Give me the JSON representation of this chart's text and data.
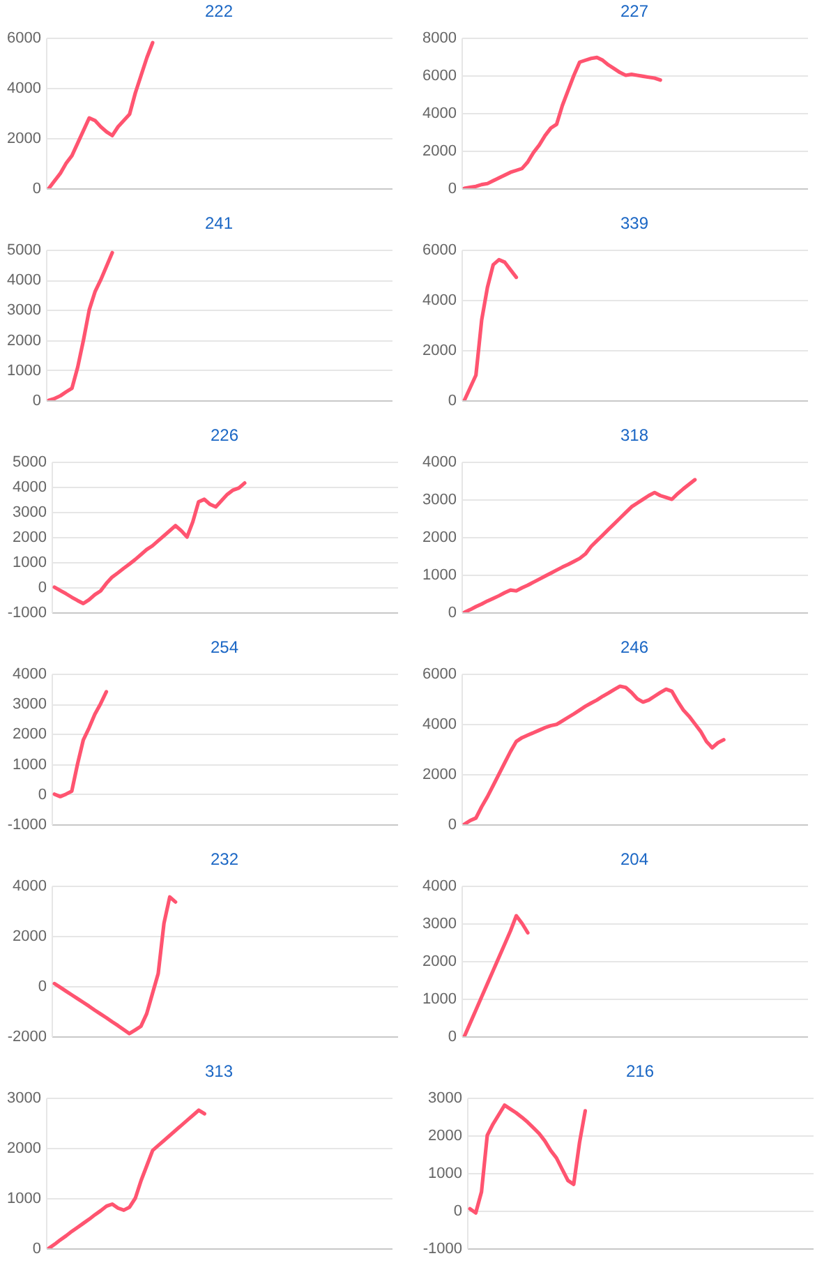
{
  "chart_data": [
    {
      "type": "line",
      "title": "222",
      "categories": [
        null,
        null,
        null,
        null,
        null,
        null,
        null,
        null,
        null,
        null,
        null,
        null,
        null,
        null,
        null,
        null,
        null,
        null,
        null,
        null,
        null,
        null,
        null,
        null,
        null,
        null,
        null,
        null,
        null,
        null,
        null,
        null,
        null,
        null,
        null,
        null,
        null,
        null,
        null,
        null,
        null,
        null,
        null,
        null,
        null,
        null,
        null,
        null,
        null,
        null,
        null,
        null,
        null,
        null,
        null,
        null,
        null,
        null,
        null,
        null
      ],
      "color": "#ff5470",
      "values": [
        0,
        300,
        600,
        1000,
        1300,
        1800,
        2300,
        2800,
        2700,
        2450,
        2250,
        2100,
        2450,
        2700,
        2950,
        3800,
        4500,
        5200,
        5800,
        null,
        null,
        null,
        null,
        null,
        null,
        null,
        null,
        null,
        null,
        null,
        null,
        null,
        null,
        null,
        null,
        null,
        null,
        null,
        null,
        null,
        null,
        null,
        null,
        null,
        null,
        null,
        null,
        null,
        null,
        null,
        null,
        null,
        null,
        null,
        null,
        null,
        null,
        null,
        null,
        null
      ],
      "ylim": [
        0,
        6000
      ],
      "yticks": [
        0,
        2000,
        4000,
        6000
      ],
      "grid": "y",
      "tick_labels": "y"
    },
    {
      "type": "line",
      "title": "227",
      "categories": [
        null,
        null,
        null,
        null,
        null,
        null,
        null,
        null,
        null,
        null,
        null,
        null,
        null,
        null,
        null,
        null,
        null,
        null,
        null,
        null,
        null,
        null,
        null,
        null,
        null,
        null,
        null,
        null,
        null,
        null,
        null,
        null,
        null,
        null,
        null,
        null,
        null,
        null,
        null,
        null,
        null,
        null,
        null,
        null,
        null,
        null,
        null,
        null,
        null,
        null,
        null,
        null,
        null,
        null,
        null,
        null,
        null,
        null,
        null,
        null
      ],
      "color": "#ff5470",
      "values": [
        0,
        50,
        100,
        200,
        250,
        400,
        550,
        700,
        850,
        950,
        1050,
        1400,
        1900,
        2300,
        2800,
        3200,
        3400,
        4400,
        5200,
        6000,
        6700,
        6800,
        6900,
        6950,
        6800,
        6550,
        6350,
        6150,
        6000,
        6050,
        6000,
        5950,
        5900,
        5850,
        5750,
        null,
        null,
        null,
        null,
        null,
        null,
        null,
        null,
        null,
        null,
        null,
        null,
        null,
        null,
        null,
        null,
        null,
        null,
        null,
        null,
        null,
        null,
        null,
        null,
        null
      ],
      "ylim": [
        0,
        8000
      ],
      "yticks": [
        0,
        2000,
        4000,
        6000,
        8000
      ],
      "grid": "y",
      "tick_labels": "y"
    },
    {
      "type": "line",
      "title": "241",
      "categories": [
        null,
        null,
        null,
        null,
        null,
        null,
        null,
        null,
        null,
        null,
        null,
        null,
        null,
        null,
        null,
        null,
        null,
        null,
        null,
        null,
        null,
        null,
        null,
        null,
        null,
        null,
        null,
        null,
        null,
        null,
        null,
        null,
        null,
        null,
        null,
        null,
        null,
        null,
        null,
        null,
        null,
        null,
        null,
        null,
        null,
        null,
        null,
        null,
        null,
        null,
        null,
        null,
        null,
        null,
        null,
        null,
        null,
        null,
        null,
        null
      ],
      "color": "#ff5470",
      "values": [
        0,
        60,
        150,
        280,
        400,
        1100,
        2000,
        3000,
        3600,
        4000,
        4450,
        4900,
        null,
        null,
        null,
        null,
        null,
        null,
        null,
        null,
        null,
        null,
        null,
        null,
        null,
        null,
        null,
        null,
        null,
        null,
        null,
        null,
        null,
        null,
        null,
        null,
        null,
        null,
        null,
        null,
        null,
        null,
        null,
        null,
        null,
        null,
        null,
        null,
        null,
        null,
        null,
        null,
        null,
        null,
        null,
        null,
        null,
        null,
        null,
        null
      ],
      "ylim": [
        0,
        5000
      ],
      "yticks": [
        0,
        1000,
        2000,
        3000,
        4000,
        5000
      ],
      "grid": "y",
      "tick_labels": "y"
    },
    {
      "type": "line",
      "title": "339",
      "categories": [
        null,
        null,
        null,
        null,
        null,
        null,
        null,
        null,
        null,
        null,
        null,
        null,
        null,
        null,
        null,
        null,
        null,
        null,
        null,
        null,
        null,
        null,
        null,
        null,
        null,
        null,
        null,
        null,
        null,
        null,
        null,
        null,
        null,
        null,
        null,
        null,
        null,
        null,
        null,
        null,
        null,
        null,
        null,
        null,
        null,
        null,
        null,
        null,
        null,
        null,
        null,
        null,
        null,
        null,
        null,
        null,
        null,
        null,
        null,
        null
      ],
      "color": "#ff5470",
      "values": [
        0,
        500,
        1000,
        3200,
        4500,
        5400,
        5600,
        5500,
        5200,
        4900,
        null,
        null,
        null,
        null,
        null,
        null,
        null,
        null,
        null,
        null,
        null,
        null,
        null,
        null,
        null,
        null,
        null,
        null,
        null,
        null,
        null,
        null,
        null,
        null,
        null,
        null,
        null,
        null,
        null,
        null,
        null,
        null,
        null,
        null,
        null,
        null,
        null,
        null,
        null,
        null,
        null,
        null,
        null,
        null,
        null,
        null,
        null,
        null,
        null,
        null
      ],
      "ylim": [
        0,
        6000
      ],
      "yticks": [
        0,
        2000,
        4000,
        6000
      ],
      "grid": "y",
      "tick_labels": "y"
    },
    {
      "type": "line",
      "title": "226",
      "categories": [
        null,
        null,
        null,
        null,
        null,
        null,
        null,
        null,
        null,
        null,
        null,
        null,
        null,
        null,
        null,
        null,
        null,
        null,
        null,
        null,
        null,
        null,
        null,
        null,
        null,
        null,
        null,
        null,
        null,
        null,
        null,
        null,
        null,
        null,
        null,
        null,
        null,
        null,
        null,
        null,
        null,
        null,
        null,
        null,
        null,
        null,
        null,
        null,
        null,
        null,
        null,
        null,
        null,
        null,
        null,
        null,
        null,
        null,
        null,
        null
      ],
      "color": "#ff5470",
      "values": [
        0,
        -130,
        -260,
        -400,
        -530,
        -650,
        -500,
        -300,
        -150,
        150,
        400,
        570,
        750,
        920,
        1100,
        1300,
        1500,
        1650,
        1850,
        2050,
        2250,
        2450,
        2250,
        2000,
        2600,
        3400,
        3500,
        3300,
        3200,
        3450,
        3700,
        3870,
        3950,
        4150,
        null,
        null,
        null,
        null,
        null,
        null,
        null,
        null,
        null,
        null,
        null,
        null,
        null,
        null,
        null,
        null,
        null,
        null,
        null,
        null,
        null,
        null,
        null,
        null,
        null,
        null
      ],
      "ylim": [
        -1000,
        5000
      ],
      "yticks": [
        -1000,
        0,
        1000,
        2000,
        3000,
        4000,
        5000
      ],
      "grid": "y",
      "tick_labels": "y"
    },
    {
      "type": "line",
      "title": "318",
      "categories": [
        null,
        null,
        null,
        null,
        null,
        null,
        null,
        null,
        null,
        null,
        null,
        null,
        null,
        null,
        null,
        null,
        null,
        null,
        null,
        null,
        null,
        null,
        null,
        null,
        null,
        null,
        null,
        null,
        null,
        null,
        null,
        null,
        null,
        null,
        null,
        null,
        null,
        null,
        null,
        null,
        null,
        null,
        null,
        null,
        null,
        null,
        null,
        null,
        null,
        null,
        null,
        null,
        null,
        null,
        null,
        null,
        null,
        null,
        null,
        null
      ],
      "color": "#ff5470",
      "values": [
        0,
        70,
        150,
        220,
        300,
        370,
        440,
        520,
        590,
        570,
        650,
        720,
        800,
        880,
        960,
        1040,
        1120,
        1200,
        1270,
        1350,
        1430,
        1550,
        1750,
        1900,
        2050,
        2200,
        2350,
        2500,
        2650,
        2800,
        2900,
        3000,
        3100,
        3180,
        3100,
        3050,
        3000,
        3150,
        3280,
        3400,
        3520,
        null,
        null,
        null,
        null,
        null,
        null,
        null,
        null,
        null,
        null,
        null,
        null,
        null,
        null,
        null,
        null,
        null,
        null,
        null
      ],
      "ylim": [
        0,
        4000
      ],
      "yticks": [
        0,
        1000,
        2000,
        3000,
        4000
      ],
      "grid": "y",
      "tick_labels": "y"
    },
    {
      "type": "line",
      "title": "254",
      "categories": [
        null,
        null,
        null,
        null,
        null,
        null,
        null,
        null,
        null,
        null,
        null,
        null,
        null,
        null,
        null,
        null,
        null,
        null,
        null,
        null,
        null,
        null,
        null,
        null,
        null,
        null,
        null,
        null,
        null,
        null,
        null,
        null,
        null,
        null,
        null,
        null,
        null,
        null,
        null,
        null,
        null,
        null,
        null,
        null,
        null,
        null,
        null,
        null,
        null,
        null,
        null,
        null,
        null,
        null,
        null,
        null,
        null,
        null,
        null,
        null
      ],
      "color": "#ff5470",
      "values": [
        0,
        -80,
        0,
        100,
        1000,
        1800,
        2200,
        2650,
        3000,
        3400,
        null,
        null,
        null,
        null,
        null,
        null,
        null,
        null,
        null,
        null,
        null,
        null,
        null,
        null,
        null,
        null,
        null,
        null,
        null,
        null,
        null,
        null,
        null,
        null,
        null,
        null,
        null,
        null,
        null,
        null,
        null,
        null,
        null,
        null,
        null,
        null,
        null,
        null,
        null,
        null,
        null,
        null,
        null,
        null,
        null,
        null,
        null,
        null,
        null,
        null
      ],
      "ylim": [
        -1000,
        4000
      ],
      "yticks": [
        -1000,
        0,
        1000,
        2000,
        3000,
        4000
      ],
      "grid": "y",
      "tick_labels": "y"
    },
    {
      "type": "line",
      "title": "246",
      "categories": [
        null,
        null,
        null,
        null,
        null,
        null,
        null,
        null,
        null,
        null,
        null,
        null,
        null,
        null,
        null,
        null,
        null,
        null,
        null,
        null,
        null,
        null,
        null,
        null,
        null,
        null,
        null,
        null,
        null,
        null,
        null,
        null,
        null,
        null,
        null,
        null,
        null,
        null,
        null,
        null,
        null,
        null,
        null,
        null,
        null,
        null,
        null,
        null,
        null,
        null,
        null,
        null,
        null,
        null,
        null,
        null,
        null,
        null,
        null,
        null
      ],
      "color": "#ff5470",
      "values": [
        0,
        150,
        250,
        700,
        1100,
        1550,
        2000,
        2450,
        2900,
        3300,
        3450,
        3550,
        3650,
        3750,
        3850,
        3930,
        3980,
        4120,
        4260,
        4400,
        4550,
        4700,
        4830,
        4950,
        5100,
        5230,
        5370,
        5500,
        5450,
        5250,
        5000,
        4870,
        4950,
        5100,
        5250,
        5380,
        5300,
        4900,
        4550,
        4300,
        4000,
        3700,
        3300,
        3050,
        3250,
        3370,
        null,
        null,
        null,
        null,
        null,
        null,
        null,
        null,
        null,
        null,
        null,
        null,
        null,
        null
      ],
      "ylim": [
        0,
        6000
      ],
      "yticks": [
        0,
        2000,
        4000,
        6000
      ],
      "grid": "y",
      "tick_labels": "y"
    },
    {
      "type": "line",
      "title": "232",
      "categories": [
        null,
        null,
        null,
        null,
        null,
        null,
        null,
        null,
        null,
        null,
        null,
        null,
        null,
        null,
        null,
        null,
        null,
        null,
        null,
        null,
        null,
        null,
        null,
        null,
        null,
        null,
        null,
        null,
        null,
        null,
        null,
        null,
        null,
        null,
        null,
        null,
        null,
        null,
        null,
        null,
        null,
        null,
        null,
        null,
        null,
        null,
        null,
        null,
        null,
        null,
        null,
        null,
        null,
        null,
        null,
        null,
        null,
        null,
        null,
        null
      ],
      "color": "#ff5470",
      "values": [
        100,
        -50,
        -200,
        -350,
        -500,
        -650,
        -800,
        -960,
        -1110,
        -1260,
        -1420,
        -1570,
        -1730,
        -1890,
        -1750,
        -1600,
        -1100,
        -300,
        500,
        2500,
        3550,
        3350,
        null,
        null,
        null,
        null,
        null,
        null,
        null,
        null,
        null,
        null,
        null,
        null,
        null,
        null,
        null,
        null,
        null,
        null,
        null,
        null,
        null,
        null,
        null,
        null,
        null,
        null,
        null,
        null,
        null,
        null,
        null,
        null,
        null,
        null,
        null,
        null,
        null,
        null
      ],
      "ylim": [
        -2000,
        4000
      ],
      "yticks": [
        -2000,
        0,
        2000,
        4000
      ],
      "grid": "y",
      "tick_labels": "y"
    },
    {
      "type": "line",
      "title": "204",
      "categories": [
        null,
        null,
        null,
        null,
        null,
        null,
        null,
        null,
        null,
        null,
        null,
        null,
        null,
        null,
        null,
        null,
        null,
        null,
        null,
        null,
        null,
        null,
        null,
        null,
        null,
        null,
        null,
        null,
        null,
        null,
        null,
        null,
        null,
        null,
        null,
        null,
        null,
        null,
        null,
        null,
        null,
        null,
        null,
        null,
        null,
        null,
        null,
        null,
        null,
        null,
        null,
        null,
        null,
        null,
        null,
        null,
        null,
        null,
        null,
        null
      ],
      "color": "#ff5470",
      "values": [
        0,
        350,
        700,
        1050,
        1400,
        1750,
        2100,
        2450,
        2800,
        3200,
        3000,
        2750,
        null,
        null,
        null,
        null,
        null,
        null,
        null,
        null,
        null,
        null,
        null,
        null,
        null,
        null,
        null,
        null,
        null,
        null,
        null,
        null,
        null,
        null,
        null,
        null,
        null,
        null,
        null,
        null,
        null,
        null,
        null,
        null,
        null,
        null,
        null,
        null,
        null,
        null,
        null,
        null,
        null,
        null,
        null,
        null,
        null,
        null,
        null,
        null
      ],
      "ylim": [
        0,
        4000
      ],
      "yticks": [
        0,
        1000,
        2000,
        3000,
        4000
      ],
      "grid": "y",
      "tick_labels": "y"
    },
    {
      "type": "line",
      "title": "313",
      "categories": [
        null,
        null,
        null,
        null,
        null,
        null,
        null,
        null,
        null,
        null,
        null,
        null,
        null,
        null,
        null,
        null,
        null,
        null,
        null,
        null,
        null,
        null,
        null,
        null,
        null,
        null,
        null,
        null,
        null,
        null,
        null,
        null,
        null,
        null,
        null,
        null,
        null,
        null,
        null,
        null,
        null,
        null,
        null,
        null,
        null,
        null,
        null,
        null,
        null,
        null,
        null,
        null,
        null,
        null,
        null,
        null,
        null,
        null,
        null,
        null
      ],
      "color": "#ff5470",
      "values": [
        0,
        80,
        170,
        250,
        340,
        420,
        500,
        580,
        670,
        750,
        840,
        880,
        800,
        760,
        820,
        1000,
        1350,
        1650,
        1950,
        2050,
        2150,
        2250,
        2350,
        2450,
        2550,
        2650,
        2750,
        2680,
        null,
        null,
        null,
        null,
        null,
        null,
        null,
        null,
        null,
        null,
        null,
        null,
        null,
        null,
        null,
        null,
        null,
        null,
        null,
        null,
        null,
        null,
        null,
        null,
        null,
        null,
        null,
        null,
        null,
        null,
        null,
        null
      ],
      "ylim": [
        0,
        3000
      ],
      "yticks": [
        0,
        1000,
        2000,
        3000
      ],
      "grid": "y",
      "tick_labels": "y"
    },
    {
      "type": "line",
      "title": "216",
      "categories": [
        null,
        null,
        null,
        null,
        null,
        null,
        null,
        null,
        null,
        null,
        null,
        null,
        null,
        null,
        null,
        null,
        null,
        null,
        null,
        null,
        null,
        null,
        null,
        null,
        null,
        null,
        null,
        null,
        null,
        null,
        null,
        null,
        null,
        null,
        null,
        null,
        null,
        null,
        null,
        null,
        null,
        null,
        null,
        null,
        null,
        null,
        null,
        null,
        null,
        null,
        null,
        null,
        null,
        null,
        null,
        null,
        null,
        null,
        null,
        null
      ],
      "color": "#ff5470",
      "values": [
        50,
        -60,
        500,
        2000,
        2300,
        2550,
        2800,
        2700,
        2600,
        2480,
        2350,
        2200,
        2050,
        1850,
        1600,
        1400,
        1100,
        800,
        700,
        1800,
        2650,
        null,
        null,
        null,
        null,
        null,
        null,
        null,
        null,
        null,
        null,
        null,
        null,
        null,
        null,
        null,
        null,
        null,
        null,
        null,
        null,
        null,
        null,
        null,
        null,
        null,
        null,
        null,
        null,
        null,
        null,
        null,
        null,
        null,
        null,
        null,
        null,
        null,
        null,
        null
      ],
      "ylim": [
        -1000,
        3000
      ],
      "yticks": [
        -1000,
        0,
        1000,
        2000,
        3000
      ],
      "grid": "y",
      "tick_labels": "y"
    }
  ]
}
